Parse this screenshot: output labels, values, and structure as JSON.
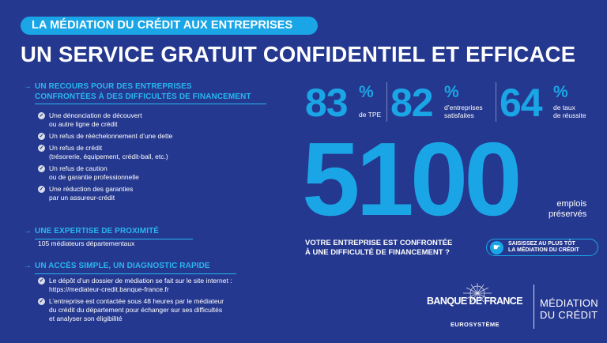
{
  "banner": {
    "label": "LA MÉDIATION DU CRÉDIT AUX ENTREPRISES"
  },
  "headline": "UN SERVICE GRATUIT CONFIDENTIEL ET EFFICACE",
  "arrow_symbol": "→",
  "sections": [
    {
      "title_line1": "UN RECOURS POUR DES ENTREPRISES",
      "title_line2": "CONFRONTÉES À DES DIFFICULTÉS DE FINANCEMENT",
      "items": [
        {
          "line1": "Une dénonciation de découvert",
          "line2": "ou autre ligne de crédit"
        },
        {
          "line1": "Un refus de rééchelonnement d’une dette",
          "line2": ""
        },
        {
          "line1": "Un refus de crédit",
          "line2": "(trésorerie, équipement, crédit-bail, etc.)"
        },
        {
          "line1": "Un refus de caution",
          "line2": "ou de garantie professionnelle"
        },
        {
          "line1": "Une réduction des garanties",
          "line2": "par un assureur-crédit"
        }
      ]
    },
    {
      "title_line1": "UNE EXPERTISE DE PROXIMITÉ",
      "text": "105 médiateurs départementaux"
    },
    {
      "title_line1": "UN ACCÈS SIMPLE, UN DIAGNOSTIC RAPIDE",
      "items": [
        {
          "line1": "Le dépôt d’un dossier de médiation se fait sur le site internet :",
          "line2": "https://mediateur-credit.banque-france.fr",
          "line3": ""
        },
        {
          "line1": "L’entreprise est contactée sous 48 heures par le médiateur",
          "line2": "du crédit du département pour échanger sur ses difficultés",
          "line3": "et analyser son éligibilité"
        }
      ]
    }
  ],
  "stats": [
    {
      "value": "83",
      "unit": "%",
      "caption_line1": "de TPE",
      "caption_line2": ""
    },
    {
      "value": "82",
      "unit": "%",
      "caption_line1": "d’entreprises",
      "caption_line2": "satisfaites"
    },
    {
      "value": "64",
      "unit": "%",
      "caption_line1": "de taux",
      "caption_line2": "de réussite"
    }
  ],
  "big_stat": {
    "value": "5100",
    "caption_line1": "emplois",
    "caption_line2": "préservés"
  },
  "question": {
    "line1": "VOTRE ENTREPRISE EST CONFRONTÉE",
    "line2": "À UNE DIFFICULTÉ DE FINANCEMENT ?"
  },
  "cta": {
    "line1": "SAISISSEZ AU PLUS TÔT",
    "line2": "LA MÉDIATION DU CRÉDIT",
    "icon": "hand-pointer-icon"
  },
  "logo": {
    "name": "BANQUE DE FRANCE",
    "subtitle": "EUROSYSTÈME",
    "right_line1": "MÉDIATION",
    "right_line2": "DU CRÉDIT"
  },
  "colors": {
    "background": "#25388f",
    "accent": "#1aa6e6",
    "section_title": "#29b6f0",
    "text": "#ffffff"
  }
}
